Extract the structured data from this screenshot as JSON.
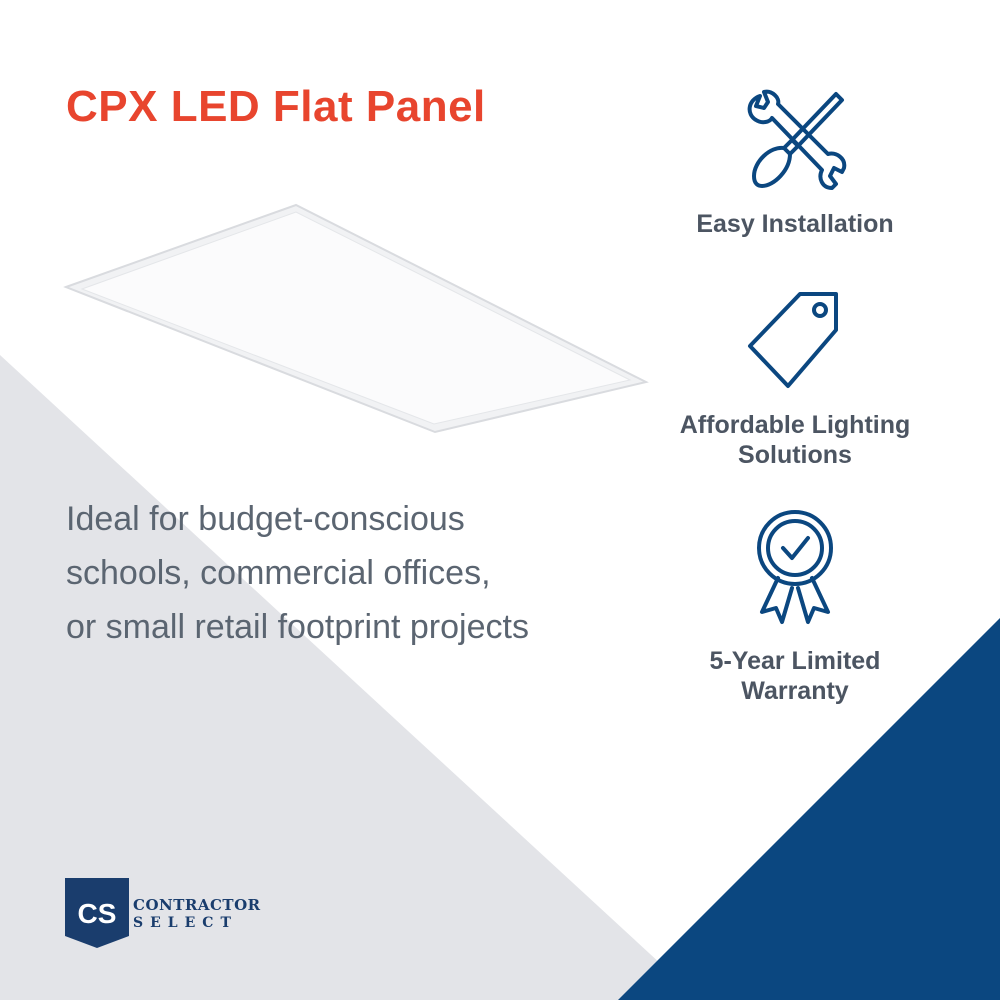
{
  "colors": {
    "accent_red": "#e8452e",
    "brand_blue": "#0b4780",
    "gray_bg": "#e3e4e8",
    "text_gray": "#5b6571"
  },
  "title": "CPX LED Flat Panel",
  "description": [
    "Ideal for budget-conscious",
    "schools, commercial offices,",
    "or small retail footprint projects"
  ],
  "features": [
    {
      "icon": "wrench-screwdriver-icon",
      "label": [
        "Easy Installation"
      ]
    },
    {
      "icon": "price-tag-icon",
      "label": [
        "Affordable Lighting",
        "Solutions"
      ]
    },
    {
      "icon": "award-ribbon-icon",
      "label": [
        "5-Year Limited",
        "Warranty"
      ]
    }
  ],
  "brand": {
    "monogram": "CS",
    "line1": "CONTRACTOR",
    "line2": "SELECT"
  }
}
